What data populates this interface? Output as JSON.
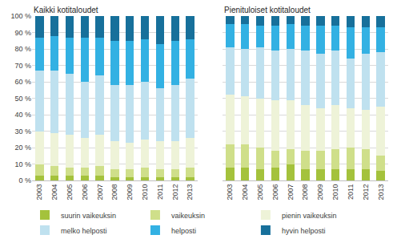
{
  "chart_data": [
    {
      "type": "bar",
      "stacked": true,
      "grid": true,
      "legend": "bottom",
      "title": "Kaikki kotitaloudet",
      "categories": [
        "2003",
        "2004",
        "2005",
        "2006",
        "2007",
        "2008",
        "2009",
        "2010",
        "2011",
        "2012",
        "2013"
      ],
      "ylim": [
        0,
        100
      ],
      "yticks": [
        {
          "value": 0,
          "label": "0 %"
        },
        {
          "value": 10,
          "label": "10 %"
        },
        {
          "value": 20,
          "label": "20 %"
        },
        {
          "value": 30,
          "label": "30 %"
        },
        {
          "value": 40,
          "label": "40 %"
        },
        {
          "value": 50,
          "label": "50 %"
        },
        {
          "value": 60,
          "label": "60 %"
        },
        {
          "value": 70,
          "label": "70 %"
        },
        {
          "value": 80,
          "label": "80 %"
        },
        {
          "value": 90,
          "label": "90 %"
        },
        {
          "value": 100,
          "label": "100 %"
        }
      ],
      "series": [
        {
          "name": "suurin vaikeuksin",
          "color": "#a4c23c",
          "values": [
            3,
            3,
            3,
            3,
            3,
            2,
            2,
            2,
            2,
            2,
            2
          ]
        },
        {
          "name": "vaikeuksin",
          "color": "#cfdf8a",
          "values": [
            7,
            6,
            5,
            5,
            6,
            5,
            5,
            6,
            5,
            5,
            6
          ]
        },
        {
          "name": "pienin vaikeuksin",
          "color": "#eef3d8",
          "values": [
            20,
            20,
            20,
            18,
            19,
            17,
            16,
            17,
            17,
            17,
            18
          ]
        },
        {
          "name": "melko helposti",
          "color": "#bfe1ef",
          "values": [
            37,
            38,
            37,
            34,
            36,
            34,
            35,
            35,
            32,
            34,
            36
          ]
        },
        {
          "name": "helposti",
          "color": "#33b1e3",
          "values": [
            20,
            21,
            22,
            27,
            23,
            27,
            27,
            26,
            27,
            27,
            24
          ]
        },
        {
          "name": "hyvin helposti",
          "color": "#17709b",
          "values": [
            13,
            12,
            13,
            13,
            13,
            15,
            15,
            14,
            17,
            15,
            14
          ]
        }
      ]
    },
    {
      "type": "bar",
      "stacked": true,
      "grid": true,
      "legend": "bottom",
      "tick_labels": "x",
      "title": "Pienituloiset kotitaloudet",
      "categories": [
        "2003",
        "2004",
        "2005",
        "2006",
        "2007",
        "2008",
        "2009",
        "2010",
        "2011",
        "2012",
        "2013"
      ],
      "ylim": [
        0,
        100
      ],
      "yticks": [
        0,
        10,
        20,
        30,
        40,
        50,
        60,
        70,
        80,
        90,
        100
      ],
      "series": [
        {
          "name": "suurin vaikeuksin",
          "color": "#a4c23c",
          "values": [
            8,
            8,
            7,
            8,
            10,
            7,
            7,
            7,
            7,
            7,
            6
          ]
        },
        {
          "name": "vaikeuksin",
          "color": "#cfdf8a",
          "values": [
            14,
            14,
            13,
            10,
            9,
            11,
            11,
            12,
            13,
            12,
            9
          ]
        },
        {
          "name": "pienin vaikeuksin",
          "color": "#eef3d8",
          "values": [
            30,
            29,
            30,
            31,
            30,
            28,
            26,
            27,
            24,
            24,
            30
          ]
        },
        {
          "name": "melko helposti",
          "color": "#bfe1ef",
          "values": [
            29,
            29,
            31,
            30,
            31,
            33,
            33,
            33,
            30,
            34,
            33
          ]
        },
        {
          "name": "helposti",
          "color": "#33b1e3",
          "values": [
            14,
            15,
            13,
            15,
            15,
            15,
            17,
            15,
            19,
            16,
            15
          ]
        },
        {
          "name": "hyvin helposti",
          "color": "#17709b",
          "values": [
            5,
            5,
            6,
            6,
            5,
            6,
            6,
            6,
            7,
            7,
            7
          ]
        }
      ]
    }
  ]
}
